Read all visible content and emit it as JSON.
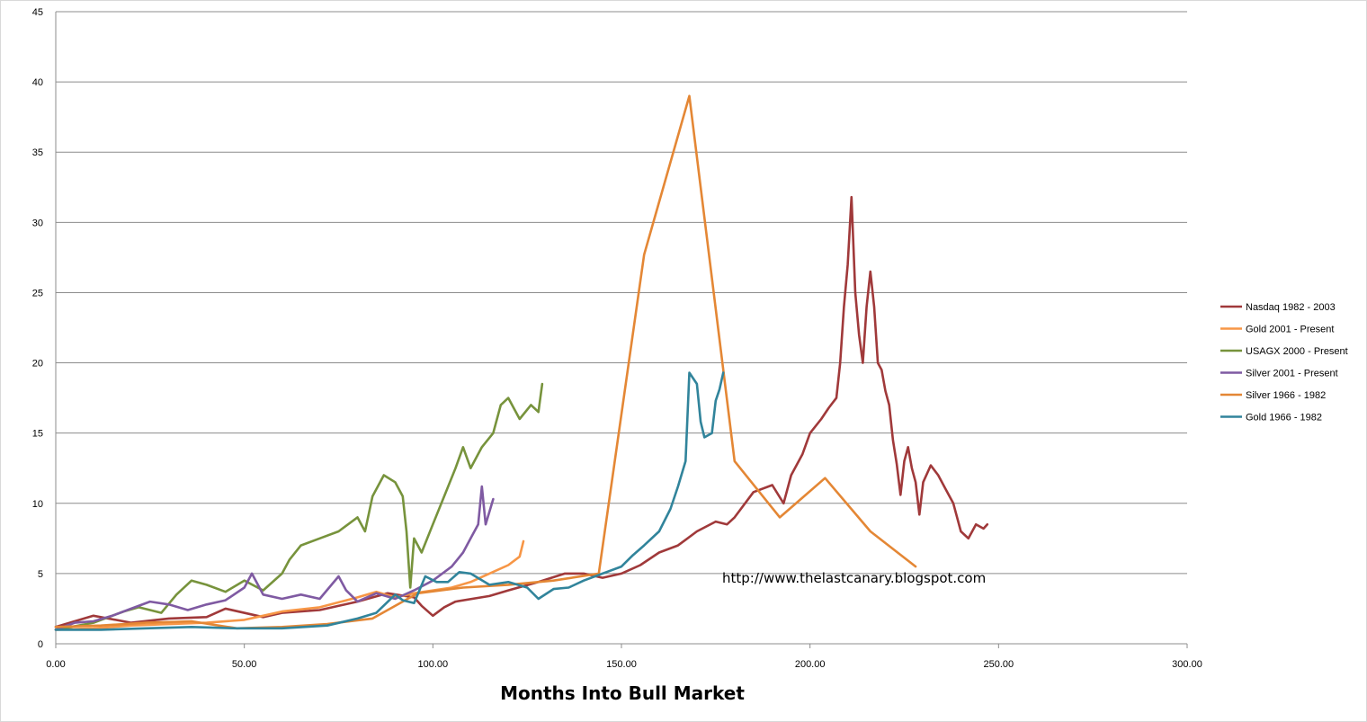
{
  "chart_data": {
    "type": "line",
    "title": "",
    "xlabel": "Months Into Bull Market",
    "ylabel": "",
    "xlim": [
      0,
      300
    ],
    "ylim": [
      0,
      45
    ],
    "x_ticks": [
      "0.00",
      "50.00",
      "100.00",
      "150.00",
      "200.00",
      "250.00",
      "300.00"
    ],
    "y_ticks": [
      "0",
      "5",
      "10",
      "15",
      "20",
      "25",
      "30",
      "35",
      "40",
      "45"
    ],
    "grid": "horizontal",
    "legend_position": "right",
    "annotation": "http://www.thelastcanary.blogspot.com",
    "series": [
      {
        "name": "Nasdaq 1982 - 2003",
        "color": "#a0393a",
        "points": [
          [
            0,
            1.2
          ],
          [
            10,
            2
          ],
          [
            20,
            1.5
          ],
          [
            30,
            1.8
          ],
          [
            40,
            1.9
          ],
          [
            45,
            2.5
          ],
          [
            55,
            1.9
          ],
          [
            60,
            2.2
          ],
          [
            70,
            2.4
          ],
          [
            80,
            3
          ],
          [
            88,
            3.6
          ],
          [
            95,
            3.3
          ],
          [
            97,
            2.7
          ],
          [
            100,
            2
          ],
          [
            103,
            2.6
          ],
          [
            106,
            3
          ],
          [
            115,
            3.4
          ],
          [
            120,
            3.8
          ],
          [
            128,
            4.4
          ],
          [
            135,
            5
          ],
          [
            140,
            5
          ],
          [
            145,
            4.7
          ],
          [
            150,
            5
          ],
          [
            155,
            5.6
          ],
          [
            160,
            6.5
          ],
          [
            165,
            7
          ],
          [
            170,
            8
          ],
          [
            175,
            8.7
          ],
          [
            178,
            8.5
          ],
          [
            180,
            9
          ],
          [
            185,
            10.8
          ],
          [
            190,
            11.3
          ],
          [
            193,
            10
          ],
          [
            195,
            12
          ],
          [
            198,
            13.5
          ],
          [
            200,
            15
          ],
          [
            203,
            16
          ],
          [
            205,
            16.8
          ],
          [
            207,
            17.5
          ],
          [
            208,
            20
          ],
          [
            209,
            24
          ],
          [
            210,
            27
          ],
          [
            211,
            31.8
          ],
          [
            212,
            25
          ],
          [
            213,
            22
          ],
          [
            214,
            20
          ],
          [
            215,
            24
          ],
          [
            216,
            26.5
          ],
          [
            217,
            24
          ],
          [
            218,
            20
          ],
          [
            219,
            19.5
          ],
          [
            220,
            18
          ],
          [
            221,
            17
          ],
          [
            222,
            14.5
          ],
          [
            223,
            12.8
          ],
          [
            224,
            10.6
          ],
          [
            225,
            13
          ],
          [
            226,
            14
          ],
          [
            227,
            12.5
          ],
          [
            228,
            11.5
          ],
          [
            229,
            9.2
          ],
          [
            230,
            11.5
          ],
          [
            232,
            12.7
          ],
          [
            234,
            12
          ],
          [
            236,
            11
          ],
          [
            238,
            10
          ],
          [
            240,
            8
          ],
          [
            242,
            7.5
          ],
          [
            244,
            8.5
          ],
          [
            246,
            8.2
          ],
          [
            247,
            8.5
          ]
        ]
      },
      {
        "name": "Gold 2001 - Present",
        "color": "#f79646",
        "points": [
          [
            0,
            1
          ],
          [
            10,
            1.1
          ],
          [
            20,
            1.3
          ],
          [
            30,
            1.4
          ],
          [
            40,
            1.5
          ],
          [
            50,
            1.7
          ],
          [
            55,
            2
          ],
          [
            60,
            2.3
          ],
          [
            70,
            2.6
          ],
          [
            80,
            3.3
          ],
          [
            85,
            3.7
          ],
          [
            90,
            3.3
          ],
          [
            95,
            3.6
          ],
          [
            100,
            3.8
          ],
          [
            105,
            4
          ],
          [
            110,
            4.4
          ],
          [
            115,
            5
          ],
          [
            120,
            5.6
          ],
          [
            123,
            6.2
          ],
          [
            124,
            7.3
          ]
        ]
      },
      {
        "name": "USAGX 2000 - Present",
        "color": "#77933c",
        "points": [
          [
            0,
            1
          ],
          [
            10,
            1.5
          ],
          [
            18,
            2.3
          ],
          [
            22,
            2.6
          ],
          [
            28,
            2.2
          ],
          [
            32,
            3.5
          ],
          [
            36,
            4.5
          ],
          [
            40,
            4.2
          ],
          [
            45,
            3.7
          ],
          [
            50,
            4.5
          ],
          [
            55,
            3.8
          ],
          [
            60,
            5
          ],
          [
            62,
            6
          ],
          [
            65,
            7
          ],
          [
            70,
            7.5
          ],
          [
            75,
            8
          ],
          [
            80,
            9
          ],
          [
            82,
            8
          ],
          [
            84,
            10.5
          ],
          [
            87,
            12
          ],
          [
            90,
            11.5
          ],
          [
            92,
            10.5
          ],
          [
            93,
            8
          ],
          [
            94,
            4
          ],
          [
            95,
            7.5
          ],
          [
            97,
            6.5
          ],
          [
            100,
            8.5
          ],
          [
            103,
            10.5
          ],
          [
            106,
            12.5
          ],
          [
            108,
            14
          ],
          [
            110,
            12.5
          ],
          [
            113,
            14
          ],
          [
            116,
            15
          ],
          [
            118,
            17
          ],
          [
            120,
            17.5
          ],
          [
            123,
            16
          ],
          [
            126,
            17
          ],
          [
            128,
            16.5
          ],
          [
            129,
            18.5
          ]
        ]
      },
      {
        "name": "Silver 2001 - Present",
        "color": "#7f5aa2",
        "points": [
          [
            0,
            1
          ],
          [
            5,
            1.5
          ],
          [
            10,
            1.6
          ],
          [
            15,
            2
          ],
          [
            20,
            2.5
          ],
          [
            25,
            3
          ],
          [
            30,
            2.8
          ],
          [
            35,
            2.4
          ],
          [
            40,
            2.8
          ],
          [
            45,
            3.1
          ],
          [
            50,
            4
          ],
          [
            52,
            5
          ],
          [
            55,
            3.5
          ],
          [
            60,
            3.2
          ],
          [
            65,
            3.5
          ],
          [
            70,
            3.2
          ],
          [
            75,
            4.8
          ],
          [
            77,
            3.8
          ],
          [
            80,
            3
          ],
          [
            85,
            3.6
          ],
          [
            90,
            3.2
          ],
          [
            95,
            3.8
          ],
          [
            100,
            4.5
          ],
          [
            105,
            5.5
          ],
          [
            108,
            6.5
          ],
          [
            110,
            7.5
          ],
          [
            112,
            8.5
          ],
          [
            113,
            11.2
          ],
          [
            114,
            8.5
          ],
          [
            116,
            10.3
          ]
        ]
      },
      {
        "name": "Silver 1966 - 1982",
        "color": "#e48735",
        "points": [
          [
            0,
            1.2
          ],
          [
            12,
            1.3
          ],
          [
            24,
            1.5
          ],
          [
            36,
            1.6
          ],
          [
            48,
            1.1
          ],
          [
            60,
            1.2
          ],
          [
            72,
            1.4
          ],
          [
            84,
            1.8
          ],
          [
            96,
            3.6
          ],
          [
            108,
            4
          ],
          [
            120,
            4.2
          ],
          [
            132,
            4.5
          ],
          [
            144,
            5
          ],
          [
            156,
            27.7
          ],
          [
            168,
            39
          ],
          [
            180,
            13
          ],
          [
            192,
            9
          ],
          [
            204,
            11.8
          ],
          [
            216,
            8
          ],
          [
            228,
            5.5
          ]
        ]
      },
      {
        "name": "Gold 1966 - 1982",
        "color": "#31849b",
        "points": [
          [
            0,
            1
          ],
          [
            12,
            1
          ],
          [
            24,
            1.1
          ],
          [
            36,
            1.2
          ],
          [
            48,
            1.1
          ],
          [
            60,
            1.1
          ],
          [
            72,
            1.3
          ],
          [
            80,
            1.8
          ],
          [
            85,
            2.2
          ],
          [
            90,
            3.5
          ],
          [
            92,
            3.1
          ],
          [
            95,
            2.9
          ],
          [
            98,
            4.8
          ],
          [
            101,
            4.4
          ],
          [
            104,
            4.4
          ],
          [
            107,
            5.1
          ],
          [
            110,
            5
          ],
          [
            115,
            4.2
          ],
          [
            120,
            4.4
          ],
          [
            125,
            4
          ],
          [
            128,
            3.2
          ],
          [
            132,
            3.9
          ],
          [
            136,
            4
          ],
          [
            140,
            4.5
          ],
          [
            145,
            5
          ],
          [
            150,
            5.5
          ],
          [
            153,
            6.3
          ],
          [
            156,
            7
          ],
          [
            160,
            8
          ],
          [
            163,
            9.6
          ],
          [
            165,
            11.2
          ],
          [
            167,
            13
          ],
          [
            168,
            19.3
          ],
          [
            170,
            18.5
          ],
          [
            171,
            15.8
          ],
          [
            172,
            14.7
          ],
          [
            174,
            15
          ],
          [
            175,
            17.3
          ],
          [
            176,
            18.1
          ],
          [
            177,
            19.3
          ]
        ]
      }
    ]
  }
}
